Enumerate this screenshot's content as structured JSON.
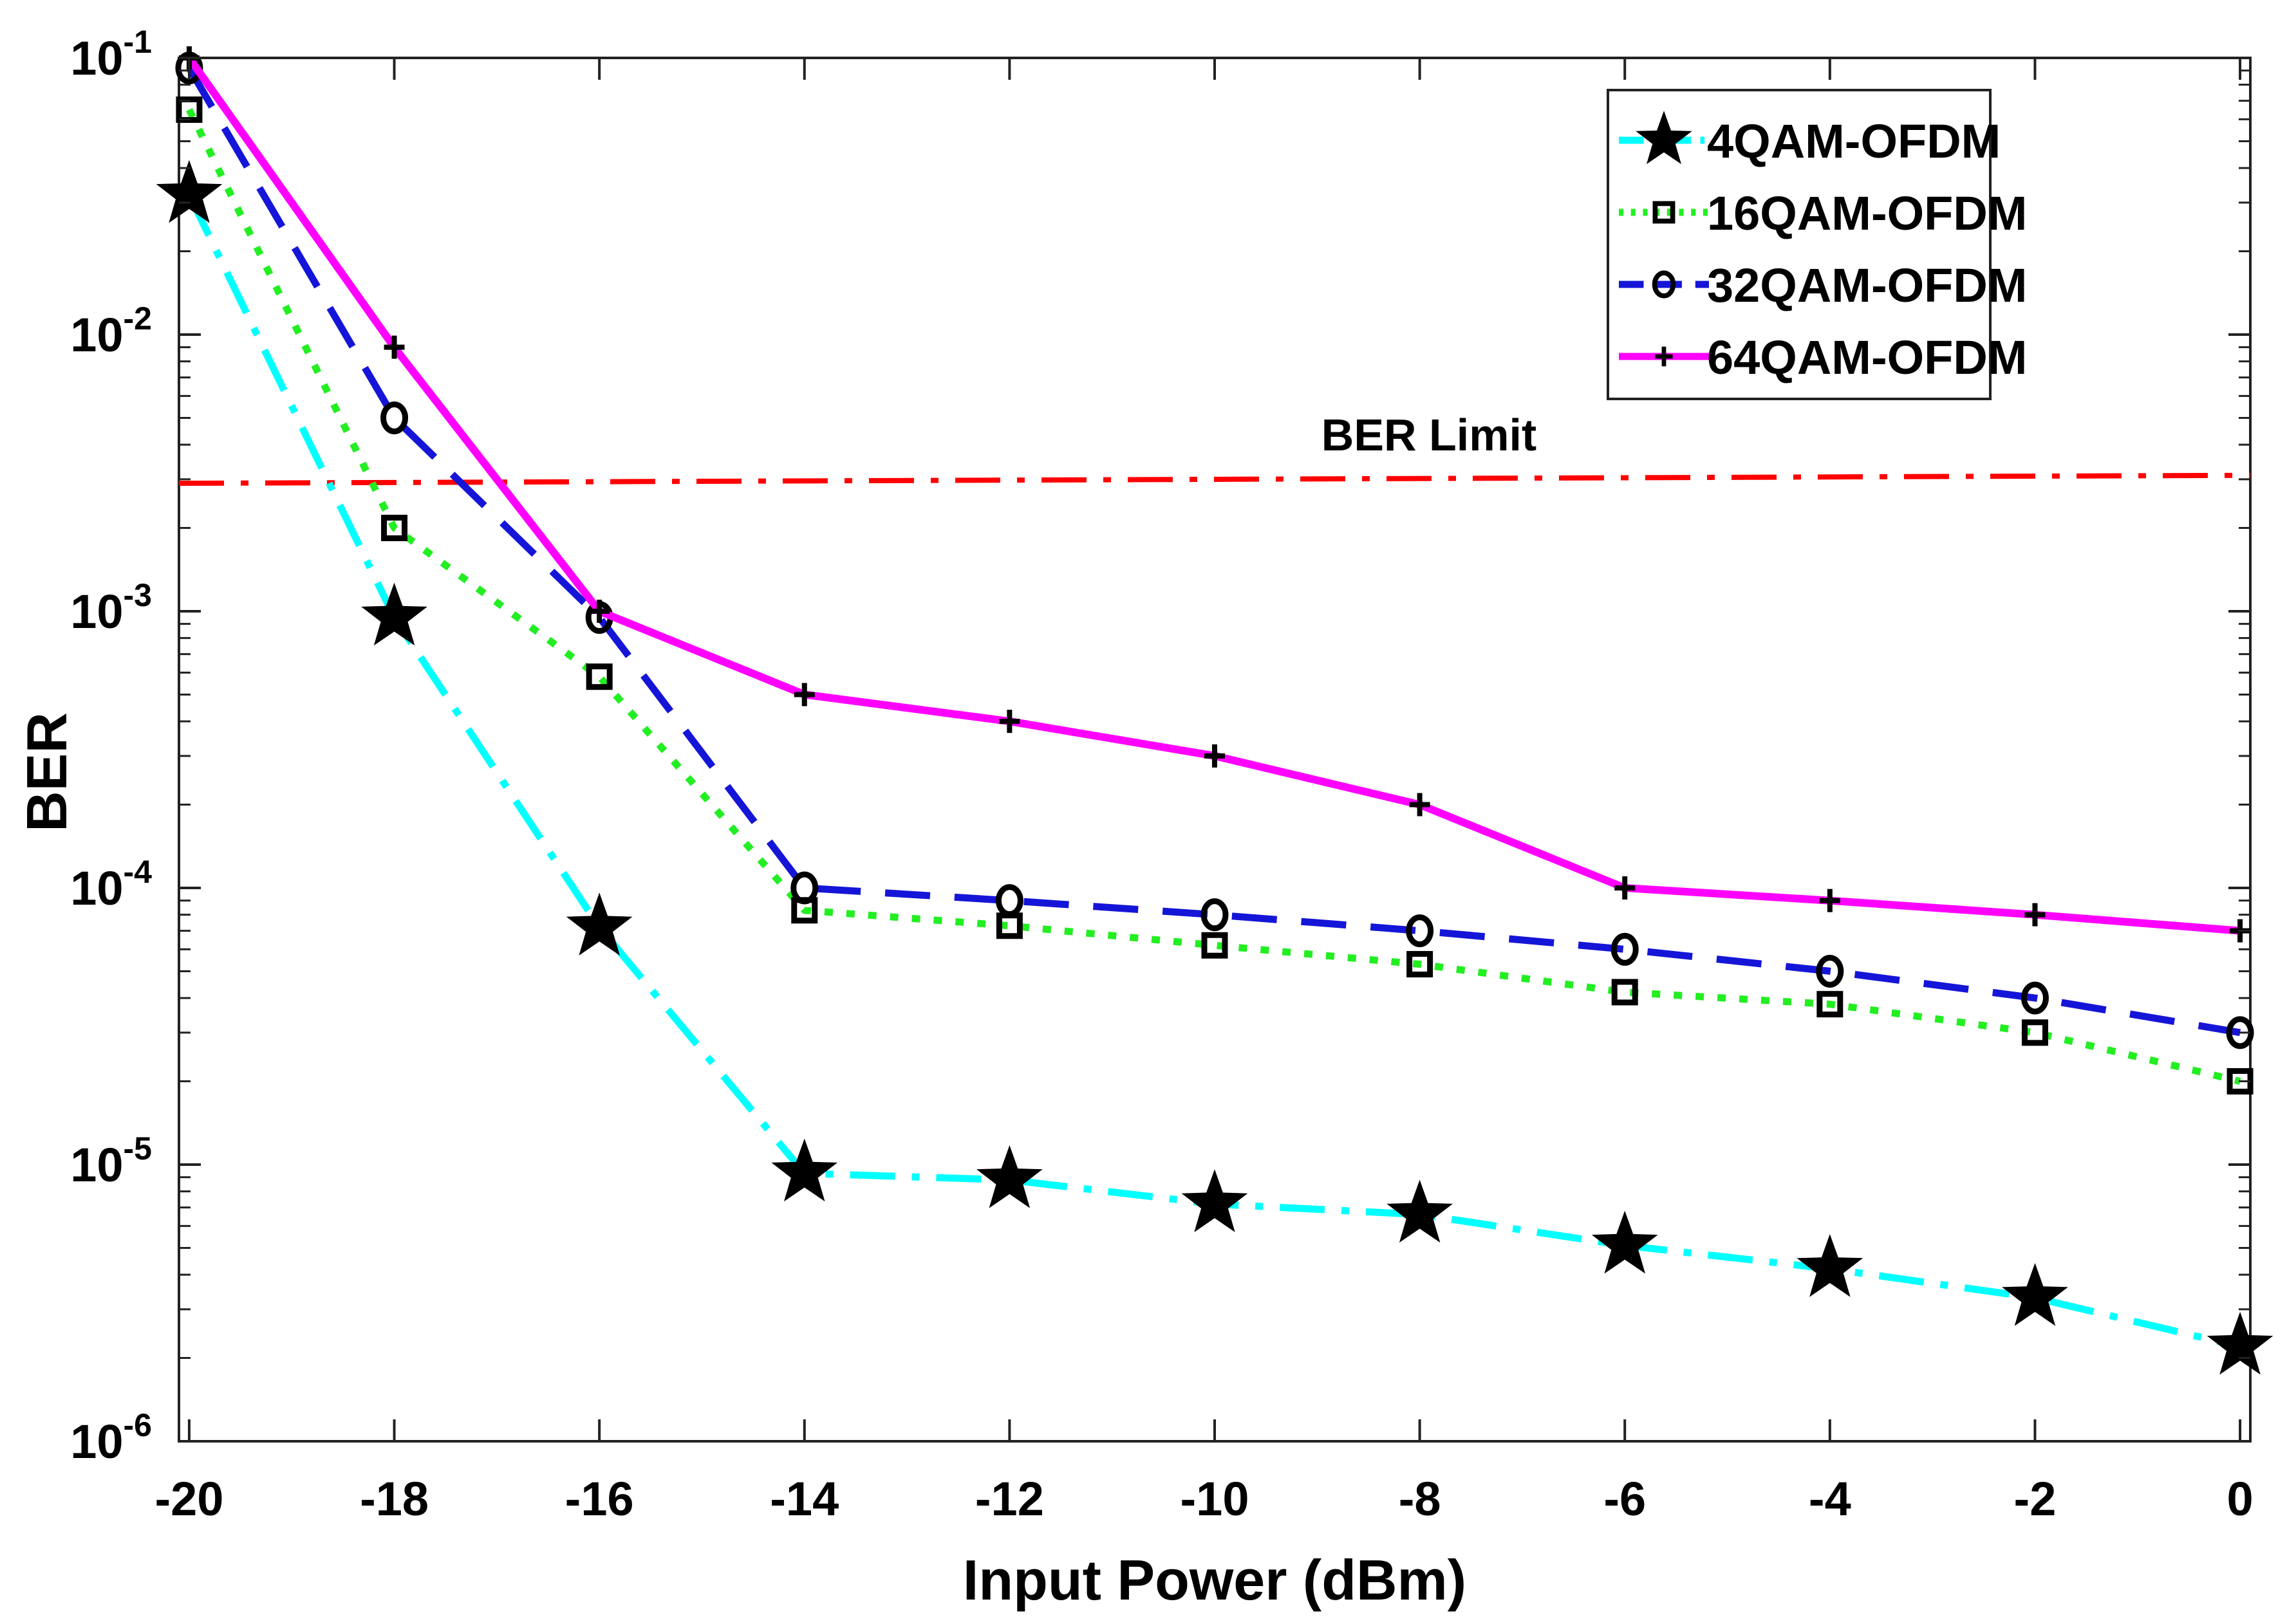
{
  "chart_data": {
    "type": "line",
    "title": "",
    "xlabel": "Input Power (dBm)",
    "ylabel": "BER",
    "x": [
      -20,
      -18,
      -16,
      -14,
      -12,
      -10,
      -8,
      -6,
      -4,
      -2,
      0
    ],
    "xlim": [
      -20.1,
      0.1
    ],
    "ylim_exp": [
      -6,
      -1
    ],
    "yscale": "log",
    "x_ticks": [
      "-20",
      "-18",
      "-16",
      "-14",
      "-12",
      "-10",
      "-8",
      "-6",
      "-4",
      "-2",
      "0"
    ],
    "y_ticks": [
      {
        "base": "10",
        "exp": "-1",
        "value": 0.1
      },
      {
        "base": "10",
        "exp": "-2",
        "value": 0.01
      },
      {
        "base": "10",
        "exp": "-3",
        "value": 0.001
      },
      {
        "base": "10",
        "exp": "-4",
        "value": 0.0001
      },
      {
        "base": "10",
        "exp": "-5",
        "value": 1e-05
      },
      {
        "base": "10",
        "exp": "-6",
        "value": 1e-06
      }
    ],
    "series": [
      {
        "name": "4QAM-OFDM",
        "color": "#00FFFF",
        "dash": "dashdot",
        "marker": "star",
        "values": [
          0.032,
          0.00095,
          7.2e-05,
          9.3e-06,
          8.8e-06,
          7.2e-06,
          6.6e-06,
          5.1e-06,
          4.2e-06,
          3.3e-06,
          2.2e-06
        ]
      },
      {
        "name": "16QAM-OFDM",
        "color": "#22EE22",
        "dash": "dotted",
        "marker": "square",
        "values": [
          0.065,
          0.002,
          0.00058,
          8.3e-05,
          7.3e-05,
          6.2e-05,
          5.3e-05,
          4.2e-05,
          3.8e-05,
          3e-05,
          2e-05
        ]
      },
      {
        "name": "32QAM-OFDM",
        "color": "#1515D8",
        "dash": "dashed",
        "marker": "circle",
        "values": [
          0.092,
          0.005,
          0.00095,
          0.0001,
          9e-05,
          8e-05,
          7e-05,
          6e-05,
          5e-05,
          4e-05,
          3e-05
        ]
      },
      {
        "name": "64QAM-OFDM",
        "color": "#FF00FF",
        "dash": "solid",
        "marker": "plus",
        "values": [
          0.1,
          0.009,
          0.001,
          0.0005,
          0.0004,
          0.0003,
          0.0002,
          0.0001,
          9e-05,
          8e-05,
          7e-05
        ]
      }
    ],
    "reference_line": {
      "label": "BER Limit",
      "color": "#FF0000",
      "dash": "dashdot",
      "start_value": 0.0029,
      "end_value": 0.0031
    },
    "legend_position": "top-right",
    "grid": false
  }
}
